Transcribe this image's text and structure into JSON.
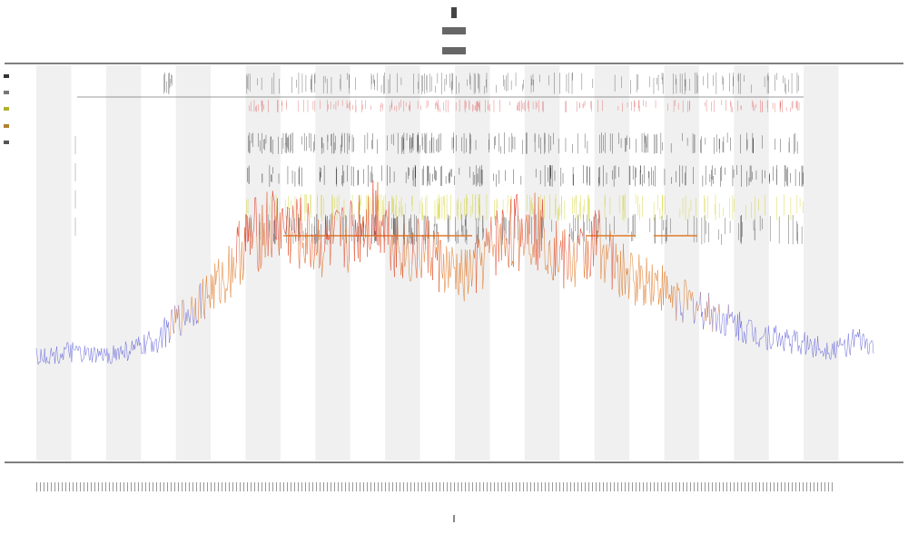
{
  "chart_data": {
    "type": "line",
    "title": "",
    "xlabel": "",
    "ylabel": "",
    "grid": false,
    "legend_position": "left",
    "bands": 24,
    "band_color": "#f0f0f0",
    "series": [
      {
        "color_low": "#6b6bdc",
        "color_mid": "#e07b2a",
        "color_high": "#e03020",
        "values": [
          10,
          10,
          11,
          10,
          10,
          11,
          12,
          14,
          18,
          22,
          26,
          30,
          38,
          42,
          44,
          42,
          40,
          38,
          40,
          44,
          48,
          40,
          36,
          38,
          32,
          30,
          34,
          40,
          42,
          44,
          40,
          34,
          36,
          40,
          32,
          30,
          30,
          26,
          24,
          22,
          20,
          18,
          16,
          15,
          14,
          13,
          12,
          12,
          14,
          12
        ]
      }
    ],
    "rug_rows": [
      {
        "color": "#555555"
      },
      {
        "color": "#e06060"
      },
      {
        "color": "#333333"
      },
      {
        "color": "#222222"
      },
      {
        "color": "#d0d020"
      },
      {
        "color": "#444444"
      }
    ],
    "markers": [
      {
        "color": "#e07b2a"
      }
    ]
  },
  "colors": {
    "axis": "#555555",
    "band": "#f0f0f0"
  }
}
